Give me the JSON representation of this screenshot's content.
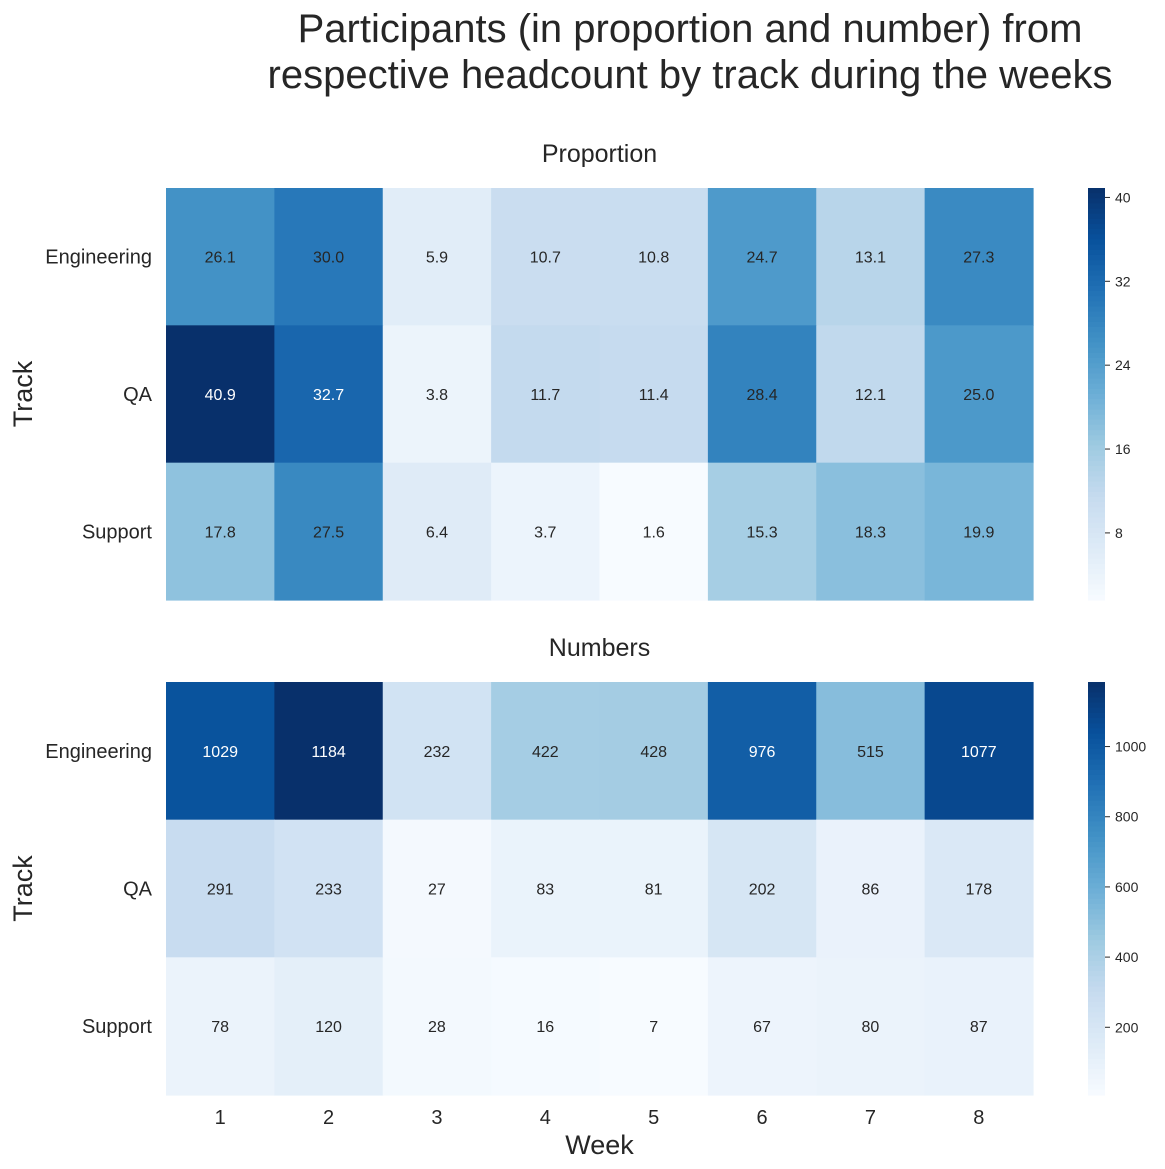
{
  "chart_data": {
    "type": "heatmap",
    "title": "Participants (in proportion and number) from\nrespective headcount by track during the weeks",
    "panels": [
      {
        "subtitle": "Proportion",
        "ylabel": "Track",
        "xlabel": "",
        "rows": [
          "Engineering",
          "QA",
          "Support"
        ],
        "columns": [
          "1",
          "2",
          "3",
          "4",
          "5",
          "6",
          "7",
          "8"
        ],
        "values": [
          [
            26.1,
            30.0,
            5.9,
            10.7,
            10.8,
            24.7,
            13.1,
            27.3
          ],
          [
            40.9,
            32.7,
            3.8,
            11.7,
            11.4,
            28.4,
            12.1,
            25.0
          ],
          [
            17.8,
            27.5,
            6.4,
            3.7,
            1.6,
            15.3,
            18.3,
            19.9
          ]
        ],
        "labels": [
          [
            "26.1",
            "30.0",
            "5.9",
            "10.7",
            "10.8",
            "24.7",
            "13.1",
            "27.3"
          ],
          [
            "40.9",
            "32.7",
            "3.8",
            "11.7",
            "11.4",
            "28.4",
            "12.1",
            "25.0"
          ],
          [
            "17.8",
            "27.5",
            "6.4",
            "3.7",
            "1.6",
            "15.3",
            "18.3",
            "19.9"
          ]
        ],
        "colorbar": {
          "min": 1.6,
          "max": 40.9,
          "ticks": [
            8,
            16,
            24,
            32,
            40
          ]
        }
      },
      {
        "subtitle": "Numbers",
        "ylabel": "Track",
        "xlabel": "Week",
        "rows": [
          "Engineering",
          "QA",
          "Support"
        ],
        "columns": [
          "1",
          "2",
          "3",
          "4",
          "5",
          "6",
          "7",
          "8"
        ],
        "values": [
          [
            1029,
            1184,
            232,
            422,
            428,
            976,
            515,
            1077
          ],
          [
            291,
            233,
            27,
            83,
            81,
            202,
            86,
            178
          ],
          [
            78,
            120,
            28,
            16,
            7,
            67,
            80,
            87
          ]
        ],
        "labels": [
          [
            "1029",
            "1184",
            "232",
            "422",
            "428",
            "976",
            "515",
            "1077"
          ],
          [
            "291",
            "233",
            "27",
            "83",
            "81",
            "202",
            "86",
            "178"
          ],
          [
            "78",
            "120",
            "28",
            "16",
            "7",
            "67",
            "80",
            "87"
          ]
        ],
        "colorbar": {
          "min": 7,
          "max": 1184,
          "ticks": [
            200,
            400,
            600,
            800,
            1000
          ]
        }
      }
    ],
    "colormap": "Blues",
    "grid": false,
    "legend": "colorbar-right"
  }
}
